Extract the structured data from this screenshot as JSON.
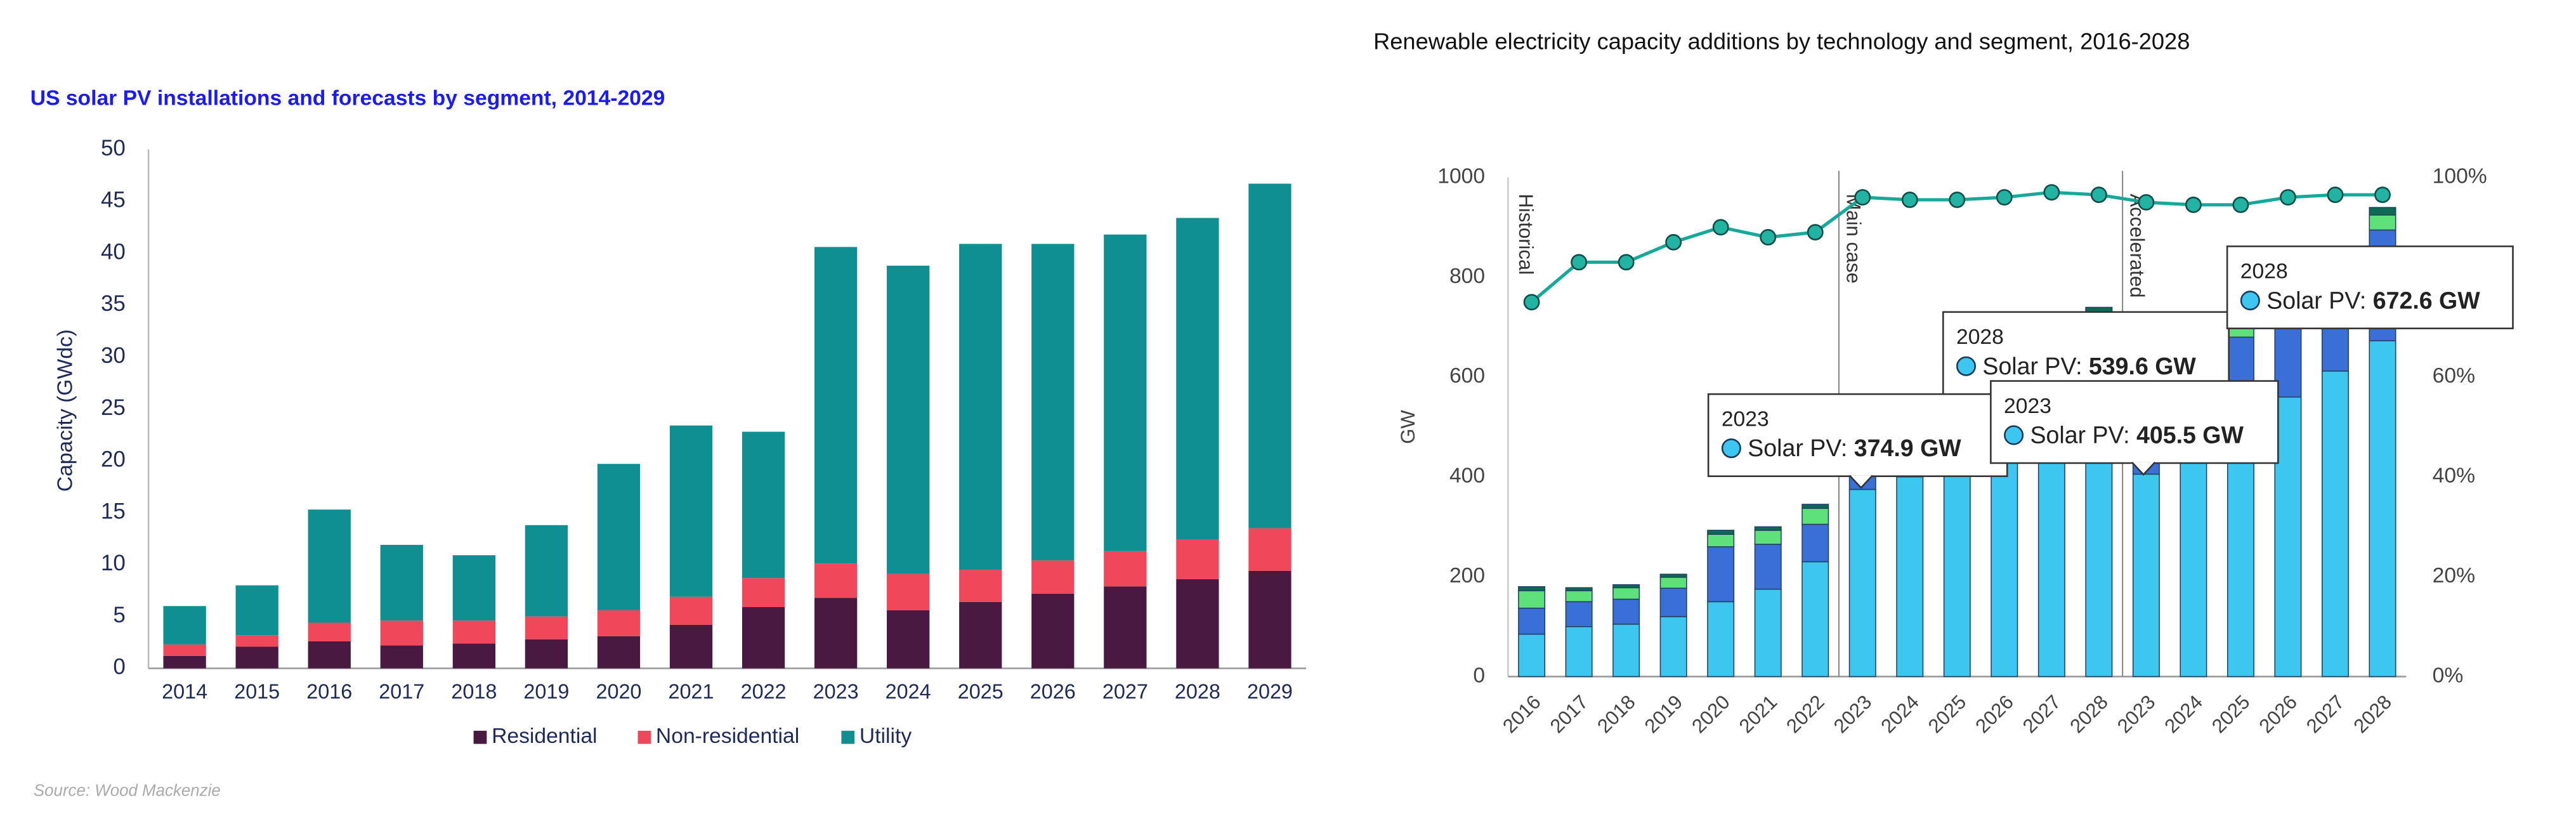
{
  "chart_data": [
    {
      "type": "bar",
      "stacked": true,
      "title": "US solar PV installations and forecasts by segment, 2014-2029",
      "y_label": "Capacity (GWdc)",
      "source": "Source: Wood Mackenzie",
      "categories": [
        "2014",
        "2015",
        "2016",
        "2017",
        "2018",
        "2019",
        "2020",
        "2021",
        "2022",
        "2023",
        "2024",
        "2025",
        "2026",
        "2027",
        "2028",
        "2029"
      ],
      "series": [
        {
          "name": "Residential",
          "color": "#4a1942",
          "values": [
            1.2,
            2.1,
            2.6,
            2.2,
            2.4,
            2.8,
            3.1,
            4.2,
            5.9,
            6.8,
            5.6,
            6.4,
            7.2,
            7.9,
            8.6,
            9.4
          ]
        },
        {
          "name": "Non-residential",
          "color": "#f0475b",
          "values": [
            1.1,
            1.1,
            1.8,
            2.4,
            2.2,
            2.2,
            2.5,
            2.7,
            2.8,
            3.3,
            3.5,
            3.1,
            3.2,
            3.4,
            3.8,
            4.1
          ]
        },
        {
          "name": "Utility",
          "color": "#0f8f92",
          "values": [
            3.7,
            4.8,
            10.9,
            7.3,
            6.3,
            8.8,
            14.1,
            16.5,
            14.1,
            30.5,
            29.7,
            31.4,
            30.5,
            30.5,
            31.0,
            33.2
          ]
        }
      ],
      "ylim": [
        0,
        50
      ],
      "yticks": [
        0,
        5,
        10,
        15,
        20,
        25,
        30,
        35,
        40,
        45,
        50
      ],
      "grid": false,
      "legend": "bottom"
    },
    {
      "type": "bar",
      "stacked": true,
      "title": "Renewable electricity capacity additions by technology and segment, 2016-2028",
      "y_label": "GW",
      "categories": [
        "2016",
        "2017",
        "2018",
        "2019",
        "2020",
        "2021",
        "2022",
        "2023",
        "2024",
        "2025",
        "2026",
        "2027",
        "2028",
        "2023",
        "2024",
        "2025",
        "2026",
        "2027",
        "2028"
      ],
      "series": [
        {
          "color": "#3cc6f0",
          "values": [
            85,
            100,
            105,
            120,
            150,
            175,
            230,
            374.9,
            400,
            440,
            480,
            510,
            539.6,
            405.5,
            460,
            520,
            560,
            612,
            672.6
          ]
        },
        {
          "color": "#3a6fd8",
          "values": [
            52,
            50,
            50,
            57,
            110,
            90,
            75,
            110,
            100,
            110,
            120,
            130,
            150,
            120,
            130,
            160,
            150,
            180,
            222
          ]
        },
        {
          "color": "#5ee07a",
          "values": [
            35,
            22,
            23,
            22,
            25,
            28,
            32,
            35,
            35,
            35,
            35,
            38,
            40,
            35,
            30,
            30,
            30,
            35,
            30
          ]
        },
        {
          "color": "#0e6a55",
          "values": [
            8,
            6,
            6,
            6,
            8,
            7,
            8,
            10,
            10,
            10,
            10,
            10,
            10,
            10,
            10,
            10,
            10,
            12,
            15
          ]
        },
        {
          "type": "line",
          "axis": "y2",
          "color": "#16a99a",
          "values": [
            75,
            83,
            83,
            87,
            90,
            88,
            89,
            96,
            95.5,
            95.5,
            96,
            97,
            96.5,
            95,
            94.5,
            94.5,
            96,
            96.5,
            96.5
          ]
        }
      ],
      "ylim": [
        0,
        1000
      ],
      "yticks": [
        0,
        200,
        400,
        600,
        800,
        1000
      ],
      "y2lim": [
        0,
        100
      ],
      "y2ticks": [
        {
          "value": 0,
          "label": "0%"
        },
        {
          "value": 20,
          "label": "20%"
        },
        {
          "value": 40,
          "label": "40%"
        },
        {
          "value": 60,
          "label": "60%"
        },
        {
          "value": 80,
          "label": "80%"
        },
        {
          "value": 100,
          "label": "100%"
        }
      ],
      "grid": false,
      "annotations": [
        "Historical",
        "Main case",
        "Accelerated"
      ],
      "callouts": [
        {
          "title": "2023",
          "label": "Solar PV:",
          "value": "374.9 GW"
        },
        {
          "title": "2028",
          "label": "Solar PV:",
          "value": "539.6 GW"
        },
        {
          "title": "2023",
          "label": "Solar PV:",
          "value": "405.5 GW"
        },
        {
          "title": "2028",
          "label": "Solar PV:",
          "value": "672.6 GW"
        }
      ]
    }
  ]
}
